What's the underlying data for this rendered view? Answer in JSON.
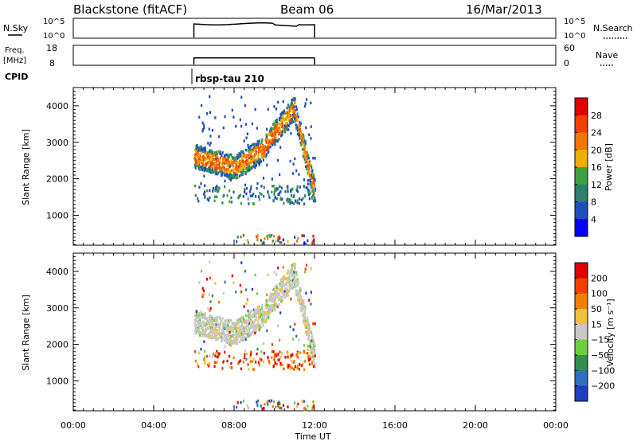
{
  "header": {
    "station": "Blackstone (fitACF)",
    "beam": "Beam 06",
    "date": "16/Mar/2013"
  },
  "strips": {
    "nsky": {
      "label": "N.Sky",
      "tick_top": "10^5",
      "tick_bottom": "10^0",
      "right_top": "10^5",
      "right_bottom": "10^0",
      "legend": "N.Search"
    },
    "freq": {
      "label_line1": "Freq.",
      "label_line2": "[MHz]",
      "tick_top": "18",
      "tick_bottom": "8",
      "right_top": "60",
      "right_bottom": "0",
      "legend": "Nave"
    },
    "cpid": {
      "label": "CPID",
      "value": "rbsp-tau 210"
    }
  },
  "time_axis": {
    "label": "Time UT",
    "ticks": [
      "00:00",
      "04:00",
      "08:00",
      "12:00",
      "16:00",
      "20:00",
      "00:00"
    ]
  },
  "chart_data": [
    {
      "type": "heatmap",
      "title": "Power",
      "xlabel": "Time UT",
      "ylabel": "Slant Range [km]",
      "xlim": [
        0,
        24
      ],
      "ylim": [
        180,
        4500
      ],
      "yticks": [
        "1000",
        "2000",
        "3000",
        "4000"
      ],
      "colorbar": {
        "label": "Power [dB]",
        "ticks": [
          "4",
          "8",
          "12",
          "16",
          "20",
          "24",
          "28"
        ],
        "colors": [
          "#0000ff",
          "#1f4fbf",
          "#2f7f6f",
          "#3fa03f",
          "#f0b000",
          "#f07800",
          "#f04000",
          "#e00000"
        ]
      },
      "data_window": {
        "start_hour": 6,
        "end_hour": 12
      }
    },
    {
      "type": "heatmap",
      "title": "Velocity",
      "xlabel": "Time UT",
      "ylabel": "Slant Range [km]",
      "xlim": [
        0,
        24
      ],
      "ylim": [
        180,
        4500
      ],
      "yticks": [
        "1000",
        "2000",
        "3000",
        "4000"
      ],
      "colorbar": {
        "label": "Velocity [m s⁻¹]",
        "ticks": [
          "200",
          "100",
          "50",
          "15",
          "−15",
          "−50",
          "−100",
          "−200"
        ],
        "colors": [
          "#1f3fbf",
          "#2f6fbf",
          "#2f8f4f",
          "#6fcf3f",
          "#c8c8c8",
          "#f0c040",
          "#f08000",
          "#f04000",
          "#e00000"
        ]
      },
      "data_window": {
        "start_hour": 6,
        "end_hour": 12
      }
    }
  ]
}
